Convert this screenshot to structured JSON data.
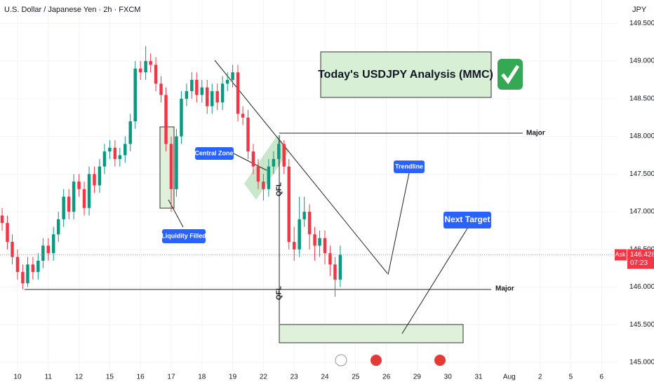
{
  "chart_data": {
    "type": "candlestick",
    "title": "U.S. Dollar / Japanese Yen · 2h · FXCM",
    "price_unit": "JPY",
    "up_color": "#089981",
    "down_color": "#f23645",
    "x": [
      -0.5,
      -0.33,
      -0.17,
      0,
      0.17,
      0.33,
      0.5,
      0.67,
      0.83,
      1,
      1.17,
      1.33,
      1.5,
      1.67,
      1.83,
      2,
      2.17,
      2.33,
      2.5,
      2.67,
      2.83,
      3,
      3.17,
      3.33,
      3.5,
      3.67,
      3.83,
      4,
      4.17,
      4.33,
      4.5,
      4.67,
      4.83,
      5,
      5.17,
      5.33,
      5.5,
      5.67,
      5.83,
      6,
      6.17,
      6.33,
      6.5,
      6.67,
      6.83,
      7,
      7.17,
      7.33,
      7.5,
      7.67,
      7.83,
      8,
      8.17,
      8.33,
      8.5,
      8.67,
      8.83,
      9,
      9.17,
      9.33,
      9.5,
      9.67,
      9.83,
      10,
      10.17,
      10.33,
      10.5
    ],
    "open": [
      146.95,
      146.85,
      146.6,
      146.4,
      146.2,
      146.05,
      146.3,
      146.2,
      146.35,
      146.55,
      146.45,
      146.7,
      146.9,
      147.2,
      147.0,
      147.4,
      147.3,
      147.05,
      147.5,
      147.35,
      147.6,
      147.8,
      147.85,
      147.7,
      147.75,
      147.9,
      148.2,
      148.9,
      148.85,
      149.0,
      148.95,
      148.7,
      148.55,
      147.9,
      147.3,
      148.0,
      148.5,
      148.6,
      148.75,
      148.55,
      148.65,
      148.4,
      148.6,
      148.45,
      148.7,
      148.75,
      148.85,
      148.3,
      148.25,
      147.8,
      147.6,
      147.4,
      147.3,
      147.6,
      147.7,
      147.9,
      147.6,
      146.6,
      146.5,
      146.9,
      147.0,
      146.7,
      146.55,
      146.65,
      146.45,
      146.3,
      146.1
    ],
    "high": [
      147.05,
      146.95,
      146.7,
      146.5,
      146.3,
      146.4,
      146.4,
      146.45,
      146.65,
      146.65,
      146.8,
      147.0,
      147.3,
      147.3,
      147.5,
      147.5,
      147.4,
      147.6,
      147.6,
      147.7,
      147.9,
      147.95,
      147.95,
      147.85,
      148.0,
      148.3,
      149.0,
      149.0,
      149.2,
      149.1,
      149.05,
      148.8,
      148.65,
      148.0,
      148.1,
      148.6,
      148.7,
      148.85,
      148.85,
      148.75,
      148.75,
      148.7,
      148.7,
      148.8,
      148.85,
      148.95,
      148.95,
      148.4,
      148.35,
      147.9,
      147.7,
      147.5,
      147.7,
      147.8,
      147.95,
      147.95,
      147.7,
      146.8,
      147.2,
      147.2,
      147.1,
      146.8,
      146.75,
      146.75,
      146.55,
      146.4,
      146.55
    ],
    "low": [
      146.75,
      146.5,
      146.3,
      146.1,
      145.97,
      146.0,
      146.1,
      146.1,
      146.25,
      146.35,
      146.35,
      146.6,
      146.8,
      146.9,
      146.9,
      147.2,
      146.95,
      146.95,
      147.25,
      147.25,
      147.5,
      147.7,
      147.6,
      147.6,
      147.65,
      147.8,
      148.1,
      148.75,
      148.75,
      148.85,
      148.6,
      148.45,
      147.8,
      147.0,
      147.2,
      147.9,
      148.4,
      148.5,
      148.45,
      148.45,
      148.3,
      148.3,
      148.35,
      148.35,
      148.6,
      148.65,
      148.2,
      148.15,
      147.7,
      147.5,
      147.3,
      147.15,
      147.2,
      147.5,
      147.6,
      147.5,
      146.5,
      146.35,
      146.4,
      146.8,
      146.5,
      146.35,
      146.4,
      146.3,
      146.15,
      145.87,
      146.0
    ],
    "close": [
      146.85,
      146.6,
      146.4,
      146.2,
      146.05,
      146.3,
      146.2,
      146.35,
      146.55,
      146.45,
      146.7,
      146.9,
      147.2,
      147.0,
      147.4,
      147.3,
      147.05,
      147.5,
      147.35,
      147.6,
      147.8,
      147.85,
      147.7,
      147.75,
      147.9,
      148.2,
      148.9,
      148.85,
      149.0,
      148.95,
      148.7,
      148.55,
      147.9,
      147.3,
      148.0,
      148.5,
      148.6,
      148.75,
      148.55,
      148.65,
      148.4,
      148.6,
      148.45,
      148.7,
      148.75,
      148.85,
      148.3,
      148.25,
      147.8,
      147.6,
      147.4,
      147.3,
      147.6,
      147.7,
      147.9,
      147.6,
      146.6,
      146.5,
      146.9,
      147.0,
      146.7,
      146.55,
      146.65,
      146.45,
      146.3,
      146.1,
      146.43
    ],
    "xlim": [
      -0.57,
      19.52
    ],
    "xticks": [
      {
        "value": 0,
        "label": "10"
      },
      {
        "value": 1,
        "label": "11"
      },
      {
        "value": 2,
        "label": "12"
      },
      {
        "value": 3,
        "label": "15"
      },
      {
        "value": 4,
        "label": "16"
      },
      {
        "value": 5,
        "label": "17"
      },
      {
        "value": 6,
        "label": "18"
      },
      {
        "value": 7,
        "label": "19"
      },
      {
        "value": 8,
        "label": "22"
      },
      {
        "value": 9,
        "label": "23"
      },
      {
        "value": 10,
        "label": "24"
      },
      {
        "value": 11,
        "label": "25"
      },
      {
        "value": 12,
        "label": "26"
      },
      {
        "value": 13,
        "label": "29"
      },
      {
        "value": 14,
        "label": "30"
      },
      {
        "value": 15,
        "label": "31"
      },
      {
        "value": 16,
        "label": "Aug"
      },
      {
        "value": 17,
        "label": "2"
      },
      {
        "value": 18,
        "label": "5"
      },
      {
        "value": 19,
        "label": "6"
      }
    ],
    "ylim": [
      144.88,
      149.81
    ],
    "yticks": [
      {
        "value": 145,
        "label": "145.000"
      },
      {
        "value": 145.5,
        "label": "145.500"
      },
      {
        "value": 146,
        "label": "146.000"
      },
      {
        "value": 146.5,
        "label": "146.500"
      },
      {
        "value": 147,
        "label": "147.000"
      },
      {
        "value": 147.5,
        "label": "147.500"
      },
      {
        "value": 148,
        "label": "148.000"
      },
      {
        "value": 148.5,
        "label": "148.500"
      },
      {
        "value": 149,
        "label": "149.000"
      },
      {
        "value": 149.5,
        "label": "149.500"
      }
    ],
    "last_price": {
      "side": "Ask",
      "value": 146.428,
      "countdown": "07:23"
    },
    "annotations": [
      "Today's USDJPY Analysis (MMC)",
      "Major",
      "Major",
      "Central Zone",
      "Trendline",
      "Liquidity Filled",
      "Next Target",
      "QFL",
      "QFL"
    ]
  }
}
